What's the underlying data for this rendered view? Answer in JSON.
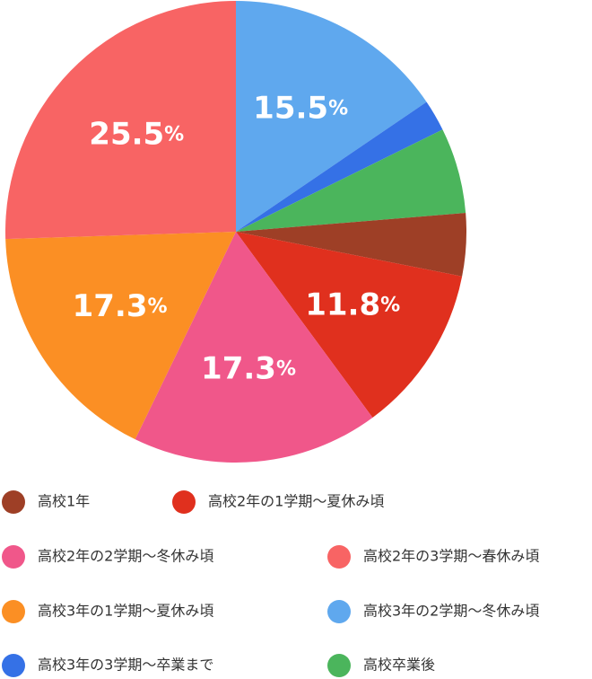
{
  "chart_data": {
    "type": "pie",
    "categories": [
      "高校1年",
      "高校2年の1学期〜夏休み頃",
      "高校2年の2学期〜冬休み頃",
      "高校2年の3学期〜春休み頃",
      "高校3年の1学期〜夏休み頃",
      "高校3年の2学期〜冬休み頃",
      "高校3年の3学期〜卒業まで",
      "高校卒業後"
    ],
    "values": [
      4.4,
      11.8,
      17.3,
      25.5,
      17.3,
      15.5,
      2.2,
      6.0
    ],
    "value_labels": [
      null,
      "11.8%",
      "17.3%",
      "25.5%",
      "17.3%",
      "15.5%",
      null,
      null
    ],
    "colors": [
      "#9e3f26",
      "#e0301e",
      "#f0578a",
      "#f86464",
      "#fb8f24",
      "#5fa8ee",
      "#3571e6",
      "#4bb55c"
    ],
    "legend": "bottom"
  }
}
